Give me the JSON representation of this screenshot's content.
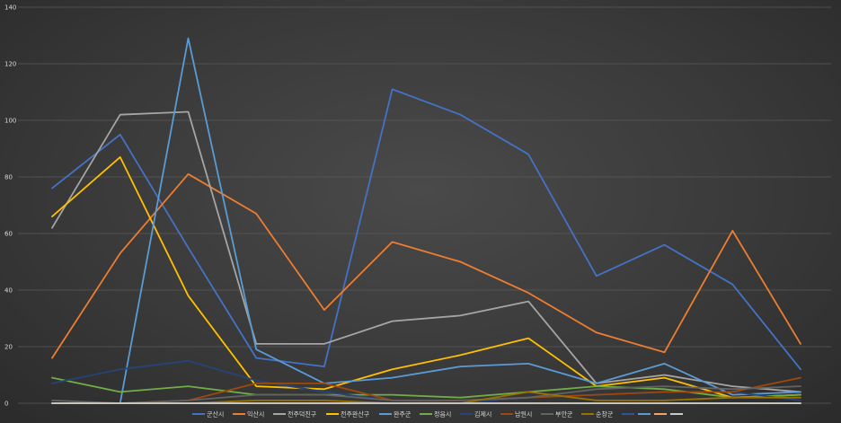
{
  "chart_data": {
    "type": "line",
    "title": "",
    "xlabel": "",
    "ylabel": "",
    "ylim": [
      0,
      140
    ],
    "yticks": [
      0,
      20,
      40,
      60,
      80,
      100,
      120,
      140
    ],
    "grid": true,
    "legend": "bottom",
    "x": [
      1,
      2,
      3,
      4,
      5,
      6,
      7,
      8,
      9,
      10,
      11,
      12
    ],
    "series": [
      {
        "name": "군산시",
        "color": "#4472c4",
        "values": [
          76,
          95,
          55,
          16,
          13,
          111,
          102,
          88,
          45,
          56,
          42,
          12
        ]
      },
      {
        "name": "익산시",
        "color": "#ed7d31",
        "values": [
          16,
          53,
          81,
          67,
          33,
          57,
          50,
          39,
          25,
          18,
          61,
          21
        ]
      },
      {
        "name": "전주덕진구",
        "color": "#a5a5a5",
        "values": [
          62,
          102,
          103,
          21,
          21,
          29,
          31,
          36,
          7,
          10,
          6,
          4
        ]
      },
      {
        "name": "전주완산구",
        "color": "#ffc000",
        "values": [
          66,
          87,
          38,
          6,
          5,
          12,
          17,
          23,
          6,
          9,
          2,
          3
        ]
      },
      {
        "name": "완주군",
        "color": "#5b9bd5",
        "values": [
          0,
          0,
          129,
          19,
          7,
          9,
          13,
          14,
          7,
          14,
          3,
          4
        ]
      },
      {
        "name": "정읍시",
        "color": "#70ad47",
        "values": [
          9,
          4,
          6,
          3,
          3,
          3,
          2,
          4,
          6,
          5,
          2,
          3
        ]
      },
      {
        "name": "김제시",
        "color": "#264478",
        "values": [
          7,
          12,
          15,
          8,
          4,
          1,
          0,
          2,
          3,
          4,
          4,
          1
        ]
      },
      {
        "name": "남원시",
        "color": "#9e480e",
        "values": [
          0,
          0,
          1,
          7,
          7,
          1,
          1,
          2,
          3,
          4,
          4,
          9
        ]
      },
      {
        "name": "부안군",
        "color": "#636363",
        "values": [
          1,
          0,
          1,
          3,
          3,
          1,
          1,
          2,
          5,
          6,
          5,
          6
        ]
      },
      {
        "name": "순창군",
        "color": "#997300",
        "values": [
          0,
          0,
          0,
          1,
          1,
          0,
          0,
          4,
          1,
          1,
          2,
          2
        ]
      },
      {
        "name": "",
        "color": "#2e5597",
        "values": [
          0,
          0,
          0,
          0,
          0,
          0,
          0,
          0,
          0,
          0,
          0,
          0
        ]
      },
      {
        "name": "",
        "color": "#5b9bd5",
        "values": [
          0,
          0,
          0,
          0,
          0,
          0,
          0,
          0,
          0,
          0,
          0,
          0
        ]
      },
      {
        "name": "",
        "color": "#f4a460",
        "values": [
          0,
          0,
          0,
          0,
          0,
          0,
          0,
          0,
          0,
          0,
          0,
          0
        ]
      },
      {
        "name": "",
        "color": "#c9c9c9",
        "values": [
          0,
          0,
          0,
          0,
          0,
          0,
          0,
          0,
          0,
          0,
          0,
          0
        ]
      }
    ]
  }
}
